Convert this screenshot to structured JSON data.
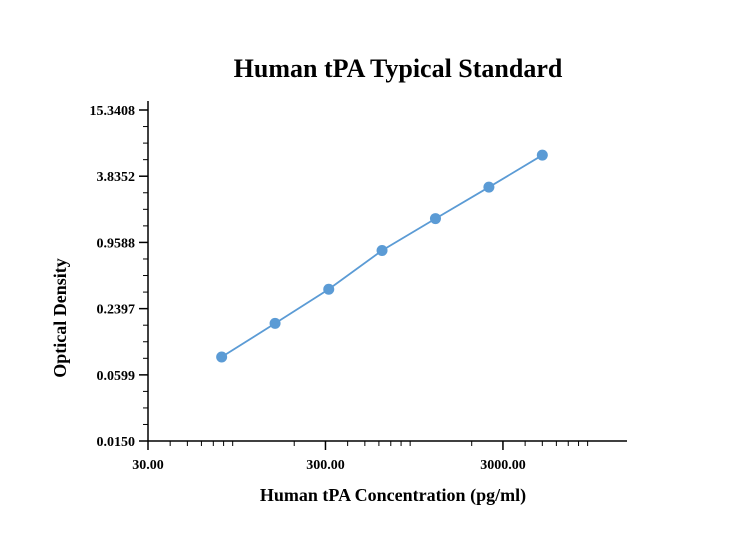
{
  "chart_data": {
    "type": "line",
    "title": "Human tPA Typical Standard",
    "xlabel": "Human tPA Concentration (pg/ml)",
    "ylabel": "Optical Density",
    "xscale": "log",
    "yscale": "log",
    "xlim": [
      30,
      15000
    ],
    "ylim": [
      0.015,
      15.3408
    ],
    "xticks": [
      30,
      300,
      3000
    ],
    "xtick_labels": [
      "30.00",
      "300.00",
      "3000.00"
    ],
    "yticks": [
      0.015,
      0.0599,
      0.2397,
      0.9588,
      3.8352,
      15.3408
    ],
    "ytick_labels": [
      "0.0150",
      "0.0599",
      "0.2397",
      "0.9588",
      "3.8352",
      "15.3408"
    ],
    "grid": false,
    "legend": "none",
    "series": [
      {
        "color": "#5b9bd5",
        "x": [
          78,
          156,
          313,
          625,
          1250,
          2500,
          5000
        ],
        "y": [
          0.087,
          0.176,
          0.36,
          0.81,
          1.58,
          3.05,
          5.96
        ]
      }
    ]
  }
}
